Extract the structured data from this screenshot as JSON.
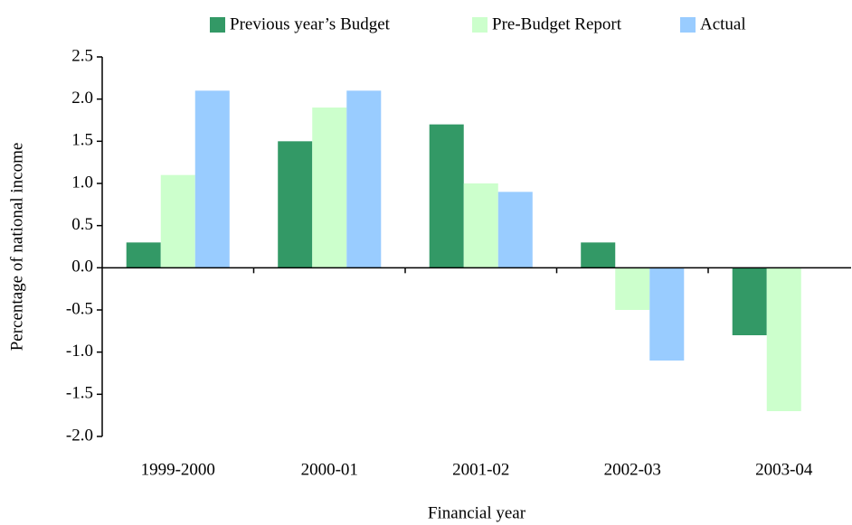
{
  "chart_data": {
    "type": "bar",
    "x_label": "Financial year",
    "y_label": "Percentage of national income",
    "categories": [
      "1999-2000",
      "2000-01",
      "2001-02",
      "2002-03",
      "2003-04"
    ],
    "series": [
      {
        "name": "Previous year’s Budget",
        "color": "#339966",
        "values": [
          0.3,
          1.5,
          1.7,
          0.3,
          -0.8
        ]
      },
      {
        "name": "Pre-Budget Report",
        "color": "#ccffcc",
        "values": [
          1.1,
          1.9,
          1.0,
          -0.5,
          -1.7
        ]
      },
      {
        "name": "Actual",
        "color": "#99ccff",
        "values": [
          2.1,
          2.1,
          0.9,
          -1.1,
          null
        ]
      }
    ],
    "ylim": [
      -2.0,
      2.5
    ],
    "yticks": [
      {
        "value": -2.0,
        "label": "-2.0"
      },
      -1.5,
      {
        "value": -1.0,
        "label": "-1.0"
      },
      -0.5,
      {
        "value": 0.0,
        "label": "0.0"
      },
      0.5,
      {
        "value": 1.0,
        "label": "1.0"
      },
      1.5,
      {
        "value": 2.0,
        "label": "2.0"
      },
      2.5
    ],
    "legend": "top",
    "grid": false
  }
}
